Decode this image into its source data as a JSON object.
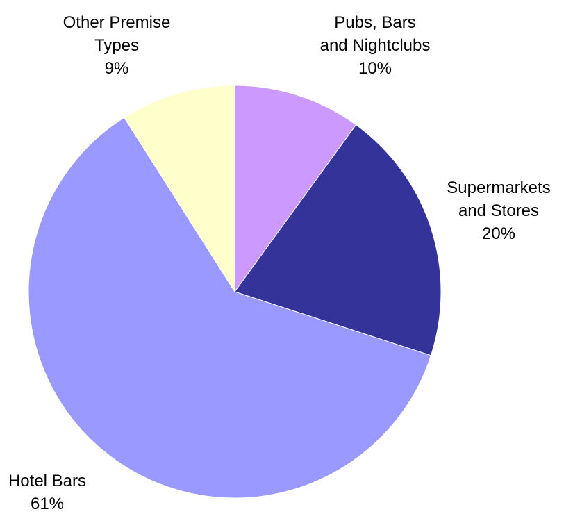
{
  "chart_data": {
    "type": "pie",
    "title": "",
    "start_angle_deg": 0,
    "direction": "clockwise",
    "slices": [
      {
        "label_lines": [
          "Pubs, Bars",
          "and Nightclubs"
        ],
        "percent_label": "10%",
        "value": 10,
        "color": "#CC99FF"
      },
      {
        "label_lines": [
          "Supermarkets",
          "and Stores"
        ],
        "percent_label": "20%",
        "value": 20,
        "color": "#333399"
      },
      {
        "label_lines": [
          "Hotel Bars"
        ],
        "percent_label": "61%",
        "value": 61,
        "color": "#9999FF"
      },
      {
        "label_lines": [
          "Other Premise",
          "Types"
        ],
        "percent_label": "9%",
        "value": 9,
        "color": "#FFFFCC"
      }
    ]
  }
}
